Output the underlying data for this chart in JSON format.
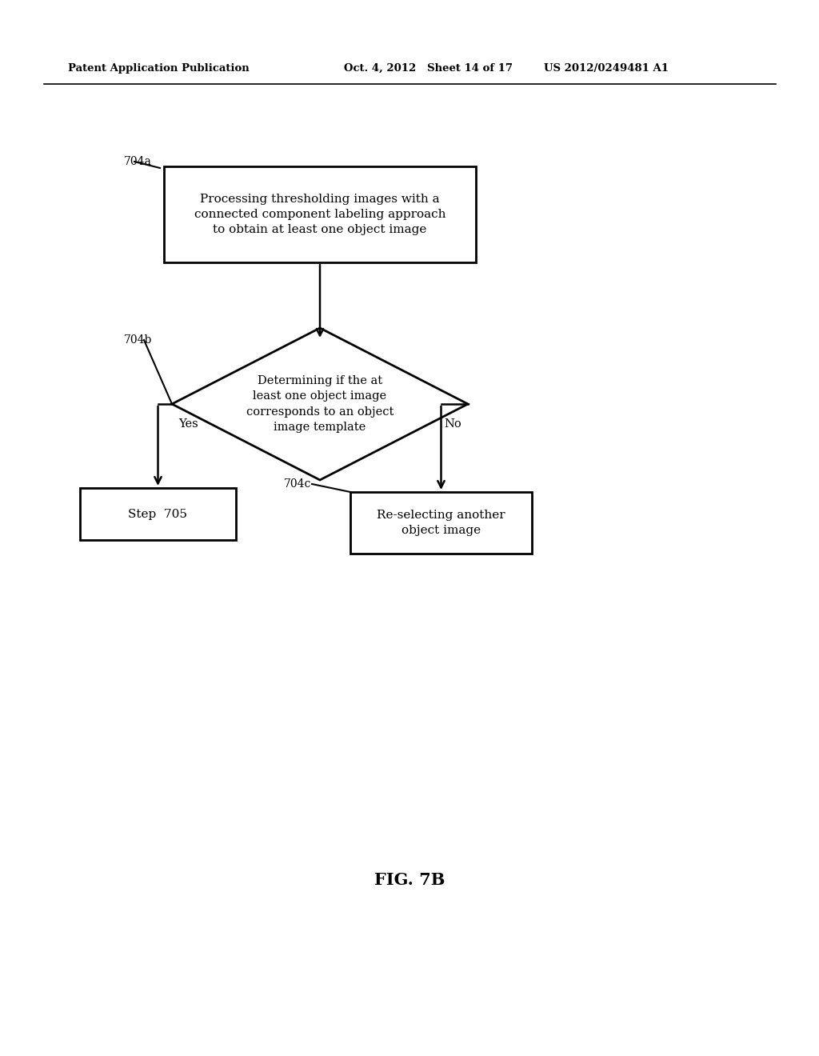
{
  "bg_color": "#ffffff",
  "header_left": "Patent Application Publication",
  "header_mid": "Oct. 4, 2012   Sheet 14 of 17",
  "header_right": "US 2012/0249481 A1",
  "fig_label": "FIG. 7B",
  "box1_text": "Processing thresholding images with a\nconnected component labeling approach\nto obtain at least one object image",
  "box1_label": "704a",
  "diamond_text": "Determining if the at\nleast one object image\ncorresponds to an object\nimage template",
  "diamond_label": "704b",
  "box2_text": "Step  705",
  "box3_text": "Re-selecting another\nobject image",
  "box3_label": "704c",
  "yes_label": "Yes",
  "no_label": "No",
  "line_color": "#000000",
  "text_color": "#000000",
  "font_family": "DejaVu Serif"
}
